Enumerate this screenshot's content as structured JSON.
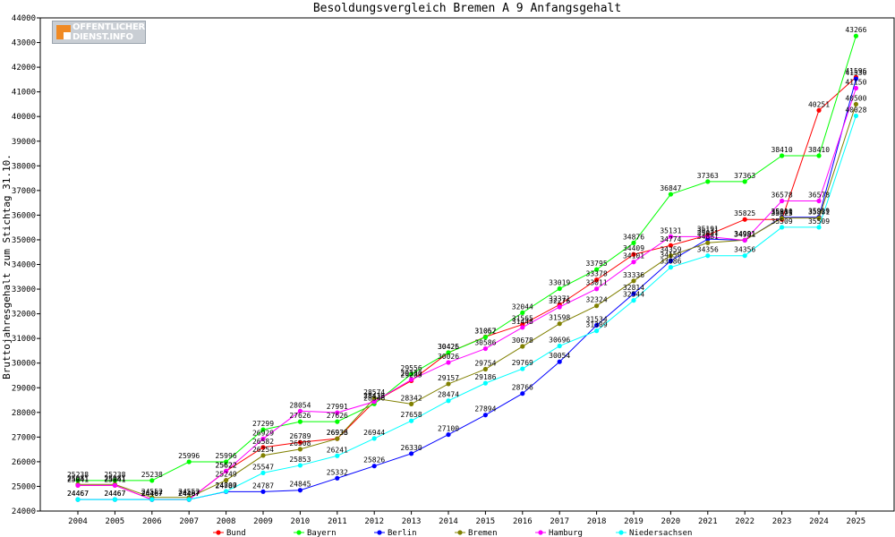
{
  "logo": {
    "line1": "OFFENTLICHER",
    "line2": "DIENST.INFO"
  },
  "chart_data": {
    "type": "line",
    "title": "Besoldungsvergleich Bremen A 9 Anfangsgehalt",
    "xlabel": "",
    "ylabel": "Bruttojahresgehalt zum Stichtag 31.10.",
    "categories": [
      "2004",
      "2005",
      "2006",
      "2007",
      "2008",
      "2009",
      "2010",
      "2011",
      "2012",
      "2013",
      "2014",
      "2015",
      "2016",
      "2017",
      "2018",
      "2019",
      "2020",
      "2021",
      "2022",
      "2023",
      "2024",
      "2025"
    ],
    "yticks": [
      24000,
      25000,
      26000,
      27000,
      28000,
      29000,
      30000,
      31000,
      32000,
      33000,
      34000,
      35000,
      36000,
      37000,
      38000,
      39000,
      40000,
      41000,
      42000,
      43000,
      44000
    ],
    "ylim": [
      24000,
      44000
    ],
    "grid": false,
    "legend_position": "bottom",
    "series": [
      {
        "name": "Bund",
        "color": "#ff0000",
        "values": [
          25041,
          25041,
          24467,
          24467,
          25622,
          26582,
          26789,
          26936,
          28433,
          29283,
          30425,
          31067,
          31565,
          32371,
          33378,
          34409,
          34774,
          35191,
          35825,
          35825,
          40251,
          41596
        ]
      },
      {
        "name": "Bayern",
        "color": "#00ff00",
        "values": [
          25238,
          25238,
          25238,
          25996,
          25996,
          27299,
          27626,
          27626,
          28346,
          29556,
          30426,
          31052,
          32044,
          33019,
          33795,
          34876,
          36847,
          37363,
          37363,
          38410,
          38410,
          43266
        ]
      },
      {
        "name": "Berlin",
        "color": "#0000ff",
        "values": [
          24467,
          24467,
          24467,
          24467,
          24787,
          24787,
          24845,
          25332,
          25826,
          26330,
          27100,
          27894,
          28766,
          30054,
          31534,
          32814,
          34150,
          35031,
          34981,
          35910,
          35919,
          41530
        ]
      },
      {
        "name": "Bremen",
        "color": "#808000",
        "values": [
          25081,
          25081,
          24552,
          24552,
          25249,
          26254,
          26508,
          26933,
          28574,
          28342,
          29157,
          29754,
          30678,
          31598,
          32324,
          33336,
          34359,
          34881,
          34991,
          35881,
          35881,
          40500
        ]
      },
      {
        "name": "Hamburg",
        "color": "#ff00ff",
        "values": [
          25041,
          25041,
          24467,
          24467,
          25622,
          26929,
          28054,
          27991,
          28436,
          29330,
          30026,
          30586,
          31448,
          32276,
          33011,
          34101,
          35131,
          35131,
          34981,
          36578,
          36578,
          41150
        ]
      },
      {
        "name": "Niedersachsen",
        "color": "#00ffff",
        "values": [
          24467,
          24467,
          24467,
          24467,
          24800,
          25547,
          25853,
          26241,
          26944,
          27658,
          28474,
          29186,
          29769,
          30696,
          31309,
          32544,
          33886,
          34356,
          34356,
          35509,
          35509,
          40028
        ]
      }
    ]
  }
}
